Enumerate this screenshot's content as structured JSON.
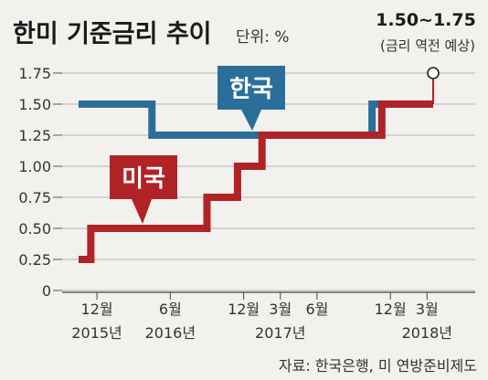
{
  "chart_data": {
    "type": "line",
    "title": "한미 기준금리 추이",
    "unit_label": "단위: %",
    "yticks": [
      "1.75",
      "1.50",
      "1.25",
      "1.00",
      "0.75",
      "0.50",
      "0.25",
      "0"
    ],
    "ylim": [
      0,
      1.75
    ],
    "x_ticks": [
      {
        "month": "12월",
        "year": "2015년",
        "t": 1.5
      },
      {
        "month": "6월",
        "year": "2016년",
        "t": 7.5
      },
      {
        "month": "12월",
        "year": "",
        "t": 13.5
      },
      {
        "month": "3월",
        "year": "2017년",
        "t": 16.5
      },
      {
        "month": "6월",
        "year": "",
        "t": 19.5
      },
      {
        "month": "12월",
        "year": "",
        "t": 25.5
      },
      {
        "month": "3월",
        "year": "2018년",
        "t": 28.5
      }
    ],
    "xlim": [
      0,
      32
    ],
    "series": [
      {
        "name": "한국",
        "color": "#2a6f9a",
        "points": [
          [
            0,
            1.5
          ],
          [
            6,
            1.5
          ],
          [
            6,
            1.25
          ],
          [
            24,
            1.25
          ],
          [
            24,
            1.5
          ],
          [
            29,
            1.5
          ]
        ]
      },
      {
        "name": "미국",
        "color": "#b02327",
        "points": [
          [
            0,
            0.25
          ],
          [
            1,
            0.25
          ],
          [
            1,
            0.5
          ],
          [
            10.5,
            0.5
          ],
          [
            10.5,
            0.75
          ],
          [
            13,
            0.75
          ],
          [
            13,
            1.0
          ],
          [
            15,
            1.0
          ],
          [
            15,
            1.25
          ],
          [
            24.8,
            1.25
          ],
          [
            24.8,
            1.5
          ],
          [
            29,
            1.5
          ]
        ]
      }
    ],
    "annotation": {
      "main": "1.50~1.75",
      "sub": "(금리 역전 예상)",
      "point": [
        29,
        1.75
      ]
    },
    "source": "자료: 한국은행, 미 연방준비제도"
  }
}
